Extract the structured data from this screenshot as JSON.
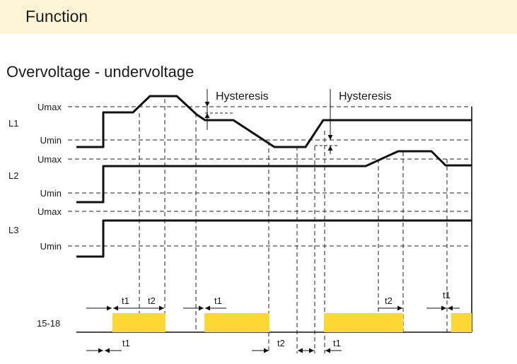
{
  "header": {
    "title": "Function"
  },
  "diagram": {
    "subtitle": "Overvoltage - undervoltage",
    "hysteresis_labels": [
      "Hysteresis",
      "Hysteresis"
    ],
    "phases": [
      {
        "name": "L1",
        "umax_label": "Umax",
        "umin_label": "Umin"
      },
      {
        "name": "L2",
        "umax_label": "Umax",
        "umin_label": "Umin"
      },
      {
        "name": "L3",
        "umax_label": "Umax",
        "umin_label": "Umin"
      }
    ],
    "relay": {
      "name": "15-18"
    },
    "timing_labels": {
      "t1_a": "t1",
      "t2_a": "t2",
      "t1_b": "t1",
      "t2_b": "t2",
      "t1_c": "t1",
      "t1_bottom_a": "t1",
      "t2_bottom": "t2",
      "t1_bottom_b": "t1"
    },
    "colors": {
      "relay_on": "#fdd835",
      "line": "#111111",
      "header_bg": "#fdf4d6"
    }
  }
}
